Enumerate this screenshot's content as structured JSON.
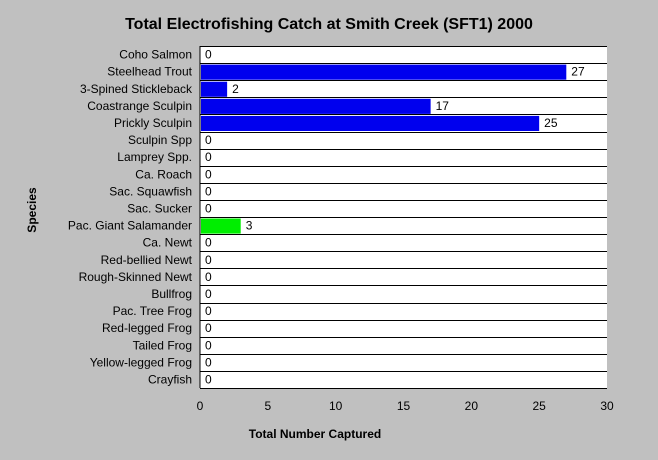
{
  "chart_data": {
    "type": "bar",
    "orientation": "horizontal",
    "title": "Total Electrofishing Catch at Smith Creek (SFT1) 2000",
    "xlabel": "Total Number Captured",
    "ylabel": "Species",
    "xlim": [
      0,
      30
    ],
    "xticks": [
      0,
      5,
      10,
      15,
      20,
      25,
      30
    ],
    "grid": "horizontal",
    "background": "#c0c0c0",
    "plot_background": "#ffffff",
    "categories": [
      "Coho Salmon",
      "Steelhead Trout",
      "3-Spined Stickleback",
      "Coastrange Sculpin",
      "Prickly Sculpin",
      "Sculpin Spp",
      "Lamprey Spp.",
      "Ca. Roach",
      "Sac. Squawfish",
      "Sac. Sucker",
      "Pac. Giant Salamander",
      "Ca. Newt",
      "Red-bellied Newt",
      "Rough-Skinned Newt",
      "Bullfrog",
      "Pac. Tree Frog",
      "Red-legged Frog",
      "Tailed Frog",
      "Yellow-legged Frog",
      "Crayfish"
    ],
    "values": [
      0,
      27,
      2,
      17,
      25,
      0,
      0,
      0,
      0,
      0,
      3,
      0,
      0,
      0,
      0,
      0,
      0,
      0,
      0,
      0
    ],
    "bar_colors": [
      "#0000ee",
      "#0000ee",
      "#0000ee",
      "#0000ee",
      "#0000ee",
      "#0000ee",
      "#0000ee",
      "#0000ee",
      "#0000ee",
      "#0000ee",
      "#00ee00",
      "#0000ee",
      "#0000ee",
      "#0000ee",
      "#0000ee",
      "#0000ee",
      "#0000ee",
      "#0000ee",
      "#0000ee",
      "#0000ee"
    ]
  }
}
